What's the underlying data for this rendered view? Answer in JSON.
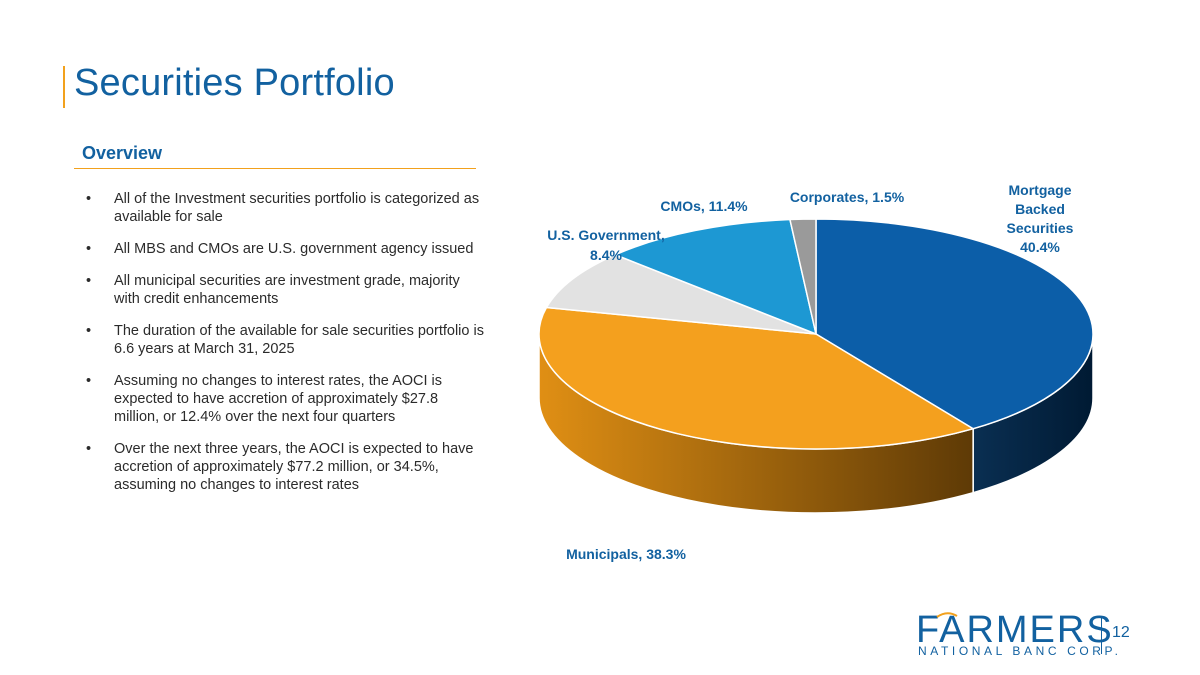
{
  "slide": {
    "title": "Securities Portfolio",
    "section_heading": "Overview",
    "page_number": "12",
    "accent_color": "#f2a11d",
    "brand_color": "#1261a0"
  },
  "bullets": [
    "All of the Investment securities portfolio is categorized as available for sale",
    "All MBS and CMOs are U.S. government agency issued",
    "All municipal securities are investment grade, majority with credit enhancements",
    "The duration of the available for sale securities portfolio is 6.6 years at March 31, 2025",
    "Assuming no changes to interest rates, the AOCI is expected to have accretion of approximately $27.8 million, or 12.4% over the next four quarters",
    "Over the next three years, the AOCI is expected to have accretion of approximately $77.2 million, or 34.5%, assuming no changes to interest rates"
  ],
  "logo": {
    "name": "FARMERS",
    "tagline": "NATIONAL BANC CORP."
  },
  "chart_data": {
    "type": "pie",
    "title": "",
    "slices": [
      {
        "label": "Mortgage Backed Securities",
        "value": 40.4,
        "color": "#0c5ea8"
      },
      {
        "label": "Municipals",
        "value": 38.3,
        "color": "#f4a01e"
      },
      {
        "label": "U.S. Government",
        "value": 8.4,
        "color": "#e2e2e2"
      },
      {
        "label": "CMOs",
        "value": 11.4,
        "color": "#1d98d3"
      },
      {
        "label": "Corporates",
        "value": 1.5,
        "color": "#9a9a9a"
      }
    ],
    "data_labels": [
      "Mortgage Backed Securities 40.4%",
      "Municipals, 38.3%",
      "U.S. Government, 8.4%",
      "CMOs, 11.4%",
      "Corporates, 1.5%"
    ]
  }
}
